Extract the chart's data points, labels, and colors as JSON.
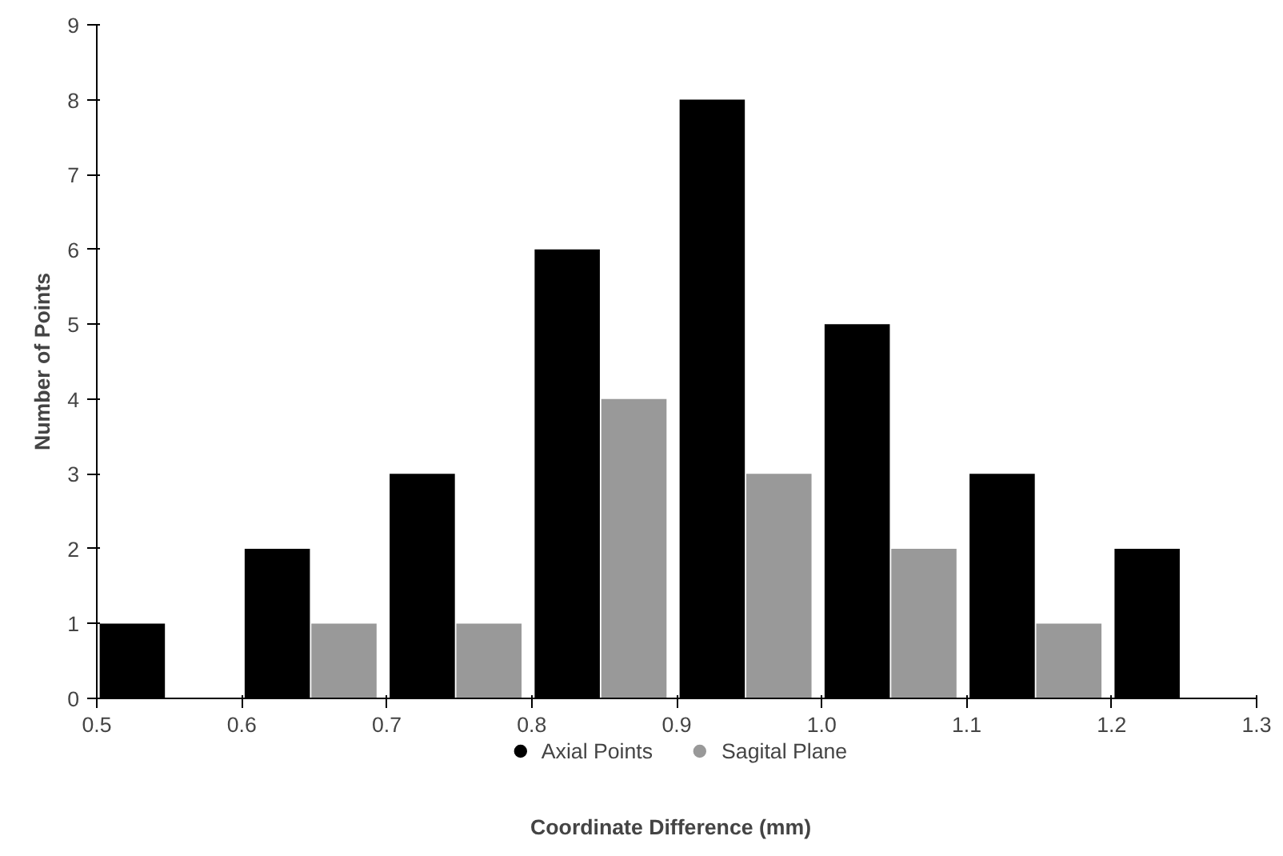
{
  "chart_data": {
    "type": "histogram",
    "xlabel": "Coordinate Difference   (mm)",
    "ylabel": "Number of Points",
    "bins": [
      0.5,
      0.6,
      0.7,
      0.8,
      0.9,
      1.0,
      1.1,
      1.2,
      1.3
    ],
    "series": [
      {
        "name": "Axial Points",
        "color": "#000000",
        "values": [
          1,
          2,
          3,
          6,
          8,
          5,
          3,
          2
        ]
      },
      {
        "name": "Sagital Plane",
        "color": "#999999",
        "values": [
          0,
          1,
          1,
          4,
          3,
          2,
          1,
          0
        ]
      }
    ],
    "xlim": [
      0.5,
      1.3
    ],
    "xticks": [
      0.5,
      0.6,
      0.7,
      0.8,
      0.9,
      {
        "value": 1.0,
        "label": "1.0"
      },
      1.1,
      1.2,
      1.3
    ],
    "ylim": [
      0,
      9
    ],
    "yticks": [
      0,
      1,
      2,
      3,
      4,
      5,
      6,
      7,
      8,
      9
    ],
    "grid": false,
    "legend": "bottom"
  }
}
